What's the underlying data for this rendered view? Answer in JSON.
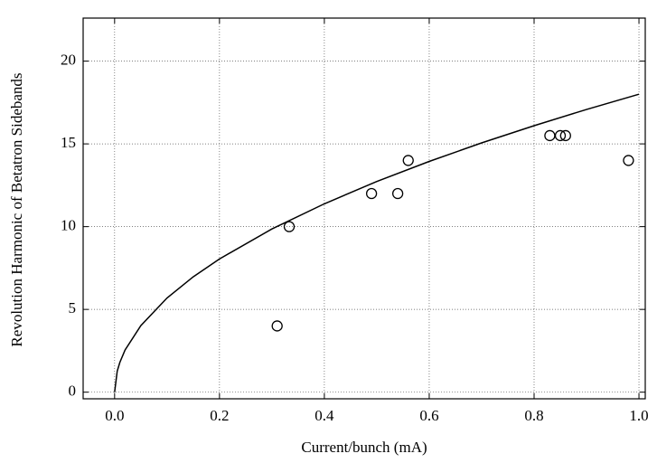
{
  "chart_data": {
    "type": "scatter",
    "xlabel": "Current/bunch (mA)",
    "ylabel": "Revolution Harmonic of Betatron Sidebands",
    "xlim": [
      -0.06,
      1.012
    ],
    "ylim": [
      -0.4,
      22.6
    ],
    "xticks": [
      {
        "value": 0,
        "label": "0.0"
      },
      0.2,
      0.4,
      0.6,
      0.8,
      {
        "value": 1,
        "label": "1.0"
      }
    ],
    "yticks": [
      0,
      5,
      10,
      15,
      20
    ],
    "grid": true,
    "series": [
      {
        "type": "line",
        "color": "#000000",
        "x": [
          0,
          0.005,
          0.01,
          0.02,
          0.05,
          0.1,
          0.15,
          0.2,
          0.3,
          0.4,
          0.5,
          0.6,
          0.7,
          0.8,
          0.9,
          1.0
        ],
        "values": [
          0,
          1.27,
          1.8,
          2.55,
          4.02,
          5.69,
          6.97,
          8.05,
          9.86,
          11.38,
          12.73,
          13.94,
          15.06,
          16.1,
          17.08,
          18.0
        ]
      },
      {
        "type": "scatter",
        "color": "#000000",
        "marker": "open-circle",
        "x": [
          0.31,
          0.333,
          0.49,
          0.54,
          0.56,
          0.83,
          0.85,
          0.86,
          0.98
        ],
        "values": [
          4,
          10,
          12,
          12,
          14,
          15.5,
          15.5,
          15.5,
          14
        ]
      }
    ]
  }
}
